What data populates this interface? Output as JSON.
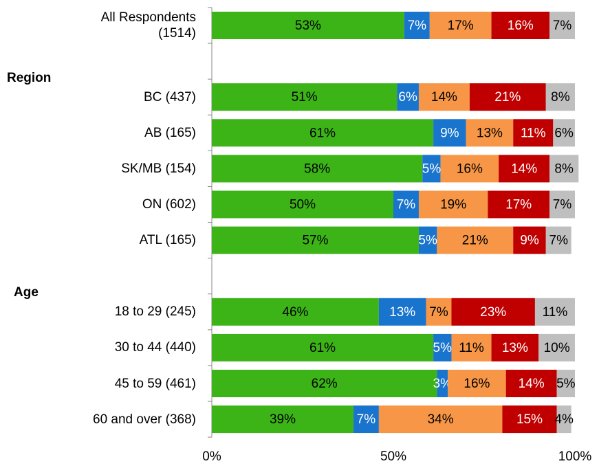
{
  "chart_data": {
    "type": "stacked-barh",
    "categories": [
      "All Respondents\n(1514)",
      "Region",
      "BC (437)",
      "AB (165)",
      "SK/MB (154)",
      "ON (602)",
      "ATL (165)",
      "Age",
      "18 to 29 (245)",
      "30 to 44 (440)",
      "45 to 59 (461)",
      "60 and over (368)"
    ],
    "series": [
      {
        "color": "#3cb317",
        "label_color": "#000000",
        "values": [
          53,
          null,
          51,
          61,
          58,
          50,
          57,
          null,
          46,
          61,
          62,
          39
        ],
        "value_labels": [
          "53%",
          null,
          "51%",
          "61%",
          "58%",
          "50%",
          "57%",
          null,
          "46%",
          "61%",
          "62%",
          "39%"
        ]
      },
      {
        "color": "#1874cd",
        "label_color": "#ffffff",
        "values": [
          7,
          null,
          6,
          9,
          5,
          7,
          5,
          null,
          13,
          5,
          3,
          7
        ],
        "value_labels": [
          "7%",
          null,
          "6%",
          "9%",
          "5%",
          "7%",
          "5%",
          null,
          "13%",
          "5%",
          "3%",
          "7%"
        ]
      },
      {
        "color": "#f79646",
        "label_color": "#000000",
        "values": [
          17,
          null,
          14,
          13,
          16,
          19,
          21,
          null,
          7,
          11,
          16,
          34
        ],
        "value_labels": [
          "17%",
          null,
          "14%",
          "13%",
          "16%",
          "19%",
          "21%",
          null,
          "7%",
          "11%",
          "16%",
          "34%"
        ]
      },
      {
        "color": "#c00000",
        "label_color": "#ffffff",
        "values": [
          16,
          null,
          21,
          11,
          14,
          17,
          9,
          null,
          23,
          13,
          14,
          15
        ],
        "value_labels": [
          "16%",
          null,
          "21%",
          "11%",
          "14%",
          "17%",
          "9%",
          null,
          "23%",
          "13%",
          "14%",
          "15%"
        ]
      },
      {
        "color": "#bfbfbf",
        "label_color": "#000000",
        "values": [
          7,
          null,
          8,
          6,
          8,
          7,
          7,
          null,
          11,
          10,
          5,
          4
        ],
        "value_labels": [
          "7%",
          null,
          "8%",
          "6%",
          "8%",
          "7%",
          "7%",
          null,
          "11%",
          "10%",
          "5%",
          "4%"
        ]
      }
    ],
    "xlim": [
      0,
      100
    ],
    "xticks": [
      {
        "value": 0,
        "label": "0%"
      },
      {
        "value": 50,
        "label": "50%"
      },
      {
        "value": 100,
        "label": "100%"
      }
    ]
  }
}
